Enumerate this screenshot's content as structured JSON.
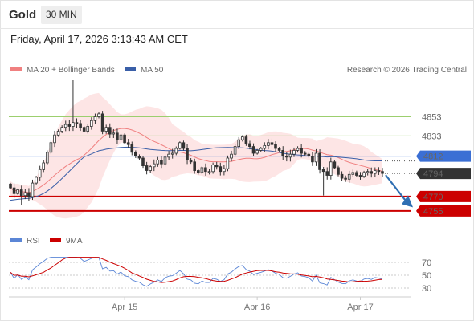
{
  "header": {
    "instrument": "Gold",
    "timeframe": "30 MIN",
    "datetime": "Friday, April 17, 2026 3:13:43 AM CET"
  },
  "legend": {
    "ma20": "MA 20 + Bollinger Bands",
    "ma50": "MA 50",
    "credit": "Research © 2026 Trading Central",
    "rsi": "RSI",
    "rsi_ma": "9MA"
  },
  "colors": {
    "ma20": "#f08080",
    "bands": "#fde0e0",
    "ma50": "#3a5fa8",
    "resistance": "#9ccf6e",
    "pivot": "#3b6fd4",
    "support": "#cc0000",
    "current": "#333333",
    "arrow": "#2f6fb3",
    "rsi": "#5b86d6",
    "rsi_ma": "#cc0000"
  },
  "chart_data": [
    {
      "type": "candlestick",
      "x_labels": [
        "Apr 15",
        "Apr 16",
        "Apr 17"
      ],
      "y_range": [
        4749,
        4891
      ],
      "levels": [
        {
          "value": 4853,
          "label": "4853",
          "kind": "resistance"
        },
        {
          "value": 4833,
          "label": "4833",
          "kind": "resistance"
        },
        {
          "value": 4812,
          "label": "4812",
          "kind": "pivot"
        },
        {
          "value": 4794,
          "label": "4794",
          "kind": "current"
        },
        {
          "value": 4770,
          "label": "4770",
          "kind": "support"
        },
        {
          "value": 4755,
          "label": "4755",
          "kind": "support"
        }
      ],
      "forecast": {
        "from": 4794,
        "to": 4757
      },
      "close": [
        4779,
        4773,
        4777,
        4771,
        4774,
        4770,
        4784,
        4790,
        4798,
        4805,
        4816,
        4826,
        4834,
        4838,
        4842,
        4845,
        4843,
        4847,
        4846,
        4842,
        4838,
        4843,
        4849,
        4853,
        4856,
        4838,
        4842,
        4835,
        4836,
        4829,
        4834,
        4826,
        4824,
        4816,
        4812,
        4810,
        4802,
        4797,
        4801,
        4804,
        4808,
        4804,
        4811,
        4814,
        4815,
        4820,
        4826,
        4820,
        4808,
        4806,
        4797,
        4795,
        4800,
        4796,
        4796,
        4803,
        4801,
        4796,
        4799,
        4810,
        4814,
        4822,
        4829,
        4832,
        4825,
        4822,
        4815,
        4818,
        4820,
        4823,
        4826,
        4824,
        4820,
        4818,
        4812,
        4811,
        4814,
        4818,
        4820,
        4815,
        4814,
        4812,
        4806,
        4815,
        4798,
        4796,
        4792,
        4806,
        4800,
        4793,
        4789,
        4788,
        4793,
        4795,
        4792,
        4791,
        4795,
        4796,
        4794,
        4797,
        4796,
        4794
      ]
    },
    {
      "type": "line",
      "name": "RSI",
      "y_ticks": [
        70,
        50,
        30
      ],
      "y_range": [
        20,
        80
      ]
    }
  ]
}
